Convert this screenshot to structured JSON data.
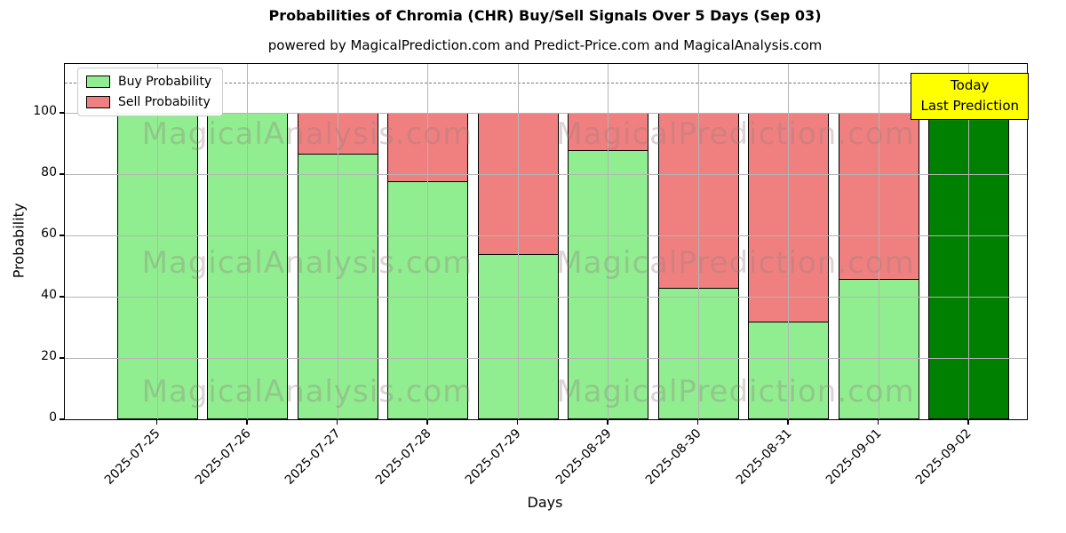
{
  "title": "Probabilities of Chromia (CHR) Buy/Sell Signals Over 5 Days (Sep 03)",
  "subtitle": "powered by MagicalPrediction.com and Predict-Price.com and MagicalAnalysis.com",
  "legend": {
    "buy_label": "Buy Probability",
    "sell_label": "Sell Probability"
  },
  "annotation": {
    "line1": "Today",
    "line2": "Last Prediction",
    "bg_color": "#FFFF00"
  },
  "watermarks": {
    "left_text": "MagicalAnalysis.com",
    "right_text": "MagicalPrediction.com"
  },
  "axes": {
    "xlabel": "Days",
    "ylabel": "Probability"
  },
  "colors": {
    "buy": "#90EE90",
    "sell": "#F08080",
    "today_bar": "#008000",
    "grid": "#B4B4B4",
    "dashed_line": "#7A7A7A"
  },
  "chart_data": {
    "type": "bar",
    "stacked": true,
    "title": "Probabilities of Chromia (CHR) Buy/Sell Signals Over 5 Days (Sep 03)",
    "xlabel": "Days",
    "ylabel": "Probability",
    "ylim": [
      0,
      116
    ],
    "yticks": [
      0,
      20,
      40,
      60,
      80,
      100
    ],
    "dashed_line_y": 110,
    "grid": true,
    "legend_position": "upper left",
    "categories": [
      "2025-07-25",
      "2025-07-26",
      "2025-07-27",
      "2025-07-28",
      "2025-07-29",
      "2025-08-29",
      "2025-08-30",
      "2025-08-31",
      "2025-09-01",
      "2025-09-02"
    ],
    "series": [
      {
        "name": "Buy Probability",
        "color": "#90EE90",
        "values": [
          100,
          100,
          87,
          78,
          54,
          88,
          43,
          32,
          46,
          100
        ]
      },
      {
        "name": "Sell Probability",
        "color": "#F08080",
        "values": [
          0,
          0,
          13,
          22,
          46,
          12,
          57,
          68,
          54,
          0
        ]
      }
    ],
    "highlight_last_bar": {
      "index": 9,
      "color": "#008000",
      "label": "Today / Last Prediction"
    }
  }
}
